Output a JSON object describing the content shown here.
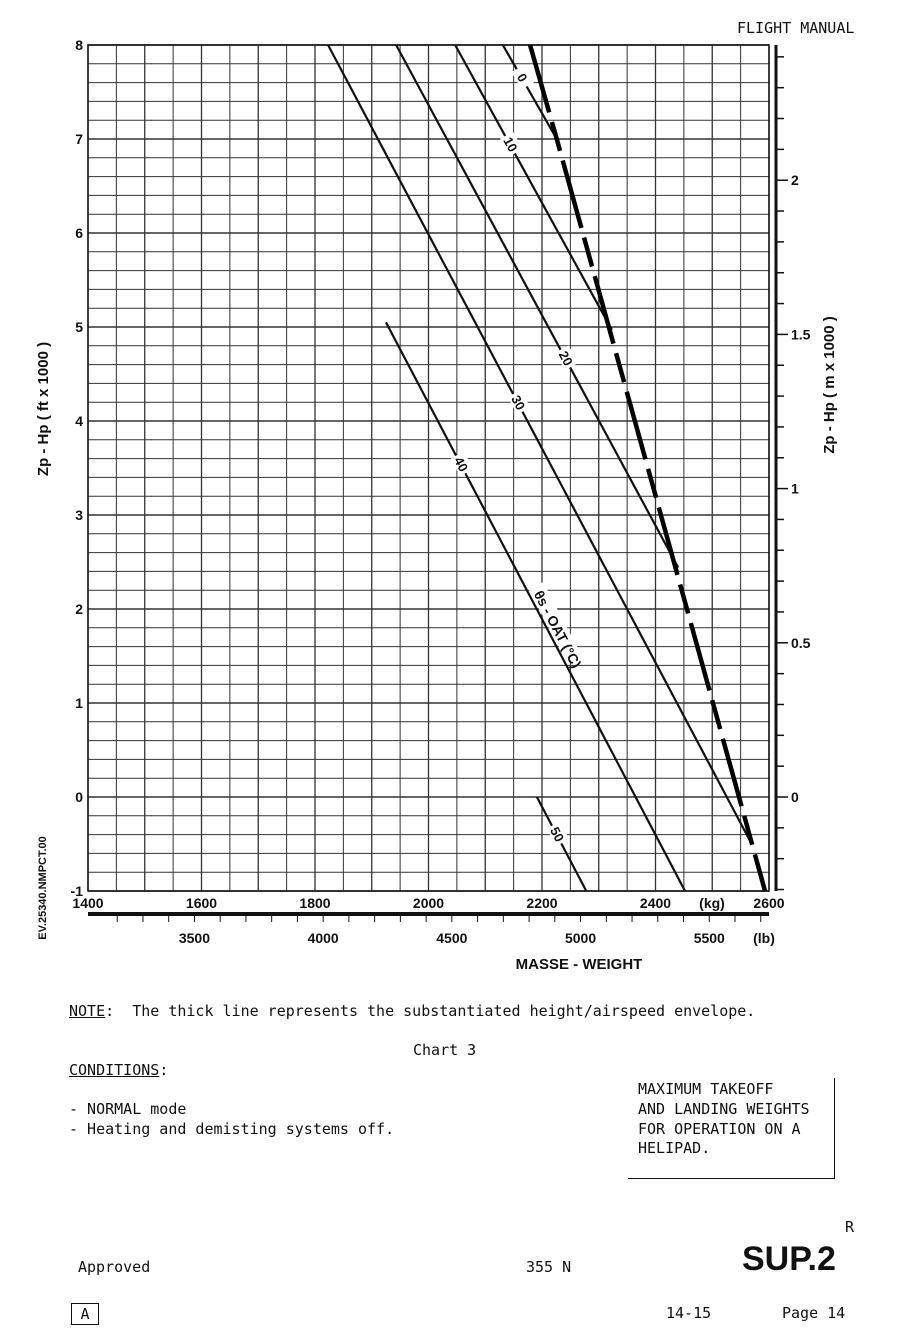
{
  "header": {
    "title": "FLIGHT MANUAL"
  },
  "chart_data": {
    "type": "line",
    "title": "Chart 3",
    "xlabel": "MASSE - WEIGHT",
    "x_unit_primary": "(kg)",
    "x_unit_secondary": "(lb)",
    "ylabel": "Zp - Hp ( ft x 1000 )",
    "ylabel_right": "Zp - Hp ( m x 1000 )",
    "xlim": [
      1400,
      2600
    ],
    "ylim": [
      -1,
      8
    ],
    "x_ticks": [
      "1400",
      "1600",
      "1800",
      "2000",
      "2200",
      "2400",
      "2600"
    ],
    "y_ticks": [
      "-1",
      "0",
      "1",
      "2",
      "3",
      "4",
      "5",
      "6",
      "7",
      "8"
    ],
    "lb_ticks": [
      "3500",
      "4000",
      "4500",
      "5000",
      "5500"
    ],
    "m_ticks": [
      "0",
      "0.5",
      "1",
      "1.5",
      "2"
    ],
    "grid": true,
    "series_label": "θs - OAT (°C)",
    "series": [
      {
        "name": "0",
        "points": [
          [
            2131,
            8
          ],
          [
            2226,
            7.0
          ]
        ]
      },
      {
        "name": "10",
        "points": [
          [
            2047,
            8
          ],
          [
            2323,
            4.97
          ]
        ]
      },
      {
        "name": "20",
        "points": [
          [
            1943,
            8
          ],
          [
            2440,
            2.44
          ]
        ]
      },
      {
        "name": "30",
        "points": [
          [
            1823,
            8
          ],
          [
            2566,
            -0.46
          ]
        ]
      },
      {
        "name": "40",
        "points": [
          [
            1925,
            5.05
          ],
          [
            2452,
            -1
          ]
        ]
      },
      {
        "name": "50",
        "points": [
          [
            2191,
            0
          ],
          [
            2278,
            -1
          ]
        ]
      }
    ],
    "envelope": {
      "name": "substantiated height/airspeed envelope",
      "points": [
        [
          2179,
          8
        ],
        [
          2226,
          7.0
        ],
        [
          2593,
          -1
        ]
      ]
    },
    "side_code": "EV.25340.NMPCT.00"
  },
  "note": {
    "label": "NOTE",
    "text": ":  The thick line represents the substantiated height/airspeed envelope."
  },
  "chart_caption": "Chart 3",
  "conditions": {
    "label": "CONDITIONS",
    "colon": ":",
    "items": [
      "- NORMAL mode",
      "- Heating and demisting systems off."
    ]
  },
  "box_text": [
    "MAXIMUM TAKEOFF",
    "AND LANDING WEIGHTS",
    "FOR OPERATION ON A",
    "HELIPAD."
  ],
  "footer": {
    "revision_mark": "R",
    "section": "SUP.2",
    "approved": "Approved",
    "doc_number": "355 N",
    "rev": "A",
    "chapter": "14-15",
    "page": "Page 14"
  }
}
